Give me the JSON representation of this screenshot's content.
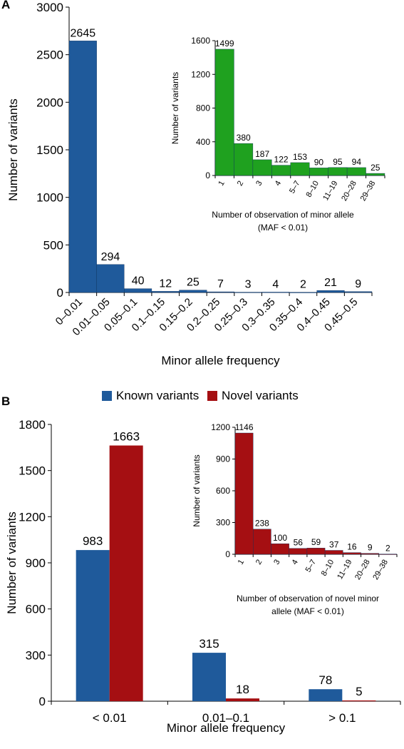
{
  "panel_labels": [
    "A",
    "B"
  ],
  "colors": {
    "blue": "#1f5a9b",
    "red": "#a50f12",
    "green": "#1fa11f"
  },
  "chart_data": [
    {
      "id": "A-main",
      "type": "bar",
      "categories": [
        "0–0.01",
        "0.01–0.05",
        "0.05–0.1",
        "0.1–0.15",
        "0.15–0.2",
        "0.2–0.25",
        "0.25–0.3",
        "0.3–0.35",
        "0.35–0.4",
        "0.4–0.45",
        "0.45–0.5"
      ],
      "values": [
        2645,
        294,
        40,
        12,
        25,
        7,
        3,
        4,
        2,
        21,
        9
      ],
      "xlabel": "Minor allele frequency",
      "ylabel": "Number of variants",
      "ylim": [
        0,
        3000
      ],
      "yticks": [
        0,
        500,
        1000,
        1500,
        2000,
        2500,
        3000
      ],
      "color": "#1f5a9b"
    },
    {
      "id": "A-inset",
      "type": "bar",
      "categories": [
        "1",
        "2",
        "3",
        "4",
        "5–7",
        "8–10",
        "11–19",
        "20–28",
        "29–38"
      ],
      "values": [
        1499,
        380,
        187,
        122,
        153,
        90,
        95,
        94,
        25
      ],
      "xlabel": [
        "Number of observation of minor allele",
        "(MAF < 0.01)"
      ],
      "ylabel": "Number of variants",
      "ylim": [
        0,
        1600
      ],
      "yticks": [
        0,
        400,
        800,
        1200,
        1600
      ],
      "color": "#1fa11f"
    },
    {
      "id": "B-main",
      "type": "bar",
      "categories": [
        "< 0.01",
        "0.01–0.1",
        "> 0.1"
      ],
      "series": [
        {
          "name": "Known variants",
          "values": [
            983,
            315,
            78
          ],
          "color": "#1f5a9b"
        },
        {
          "name": "Novel variants",
          "values": [
            1663,
            18,
            5
          ],
          "color": "#a50f12"
        }
      ],
      "xlabel": "Minor allele frequency",
      "ylabel": "Number of variants",
      "ylim": [
        0,
        1800
      ],
      "yticks": [
        0,
        300,
        600,
        900,
        1200,
        1500,
        1800
      ],
      "legend": "top"
    },
    {
      "id": "B-inset",
      "type": "bar",
      "categories": [
        "1",
        "2",
        "3",
        "4",
        "5–7",
        "8–10",
        "11–19",
        "20–28",
        "29–38"
      ],
      "values": [
        1146,
        238,
        100,
        56,
        59,
        37,
        16,
        9,
        2
      ],
      "xlabel": [
        "Number of observation of novel minor",
        "allele (MAF < 0.01)"
      ],
      "ylabel": "Number of variants",
      "ylim": [
        0,
        1200
      ],
      "yticks": [
        0,
        300,
        600,
        900,
        1200
      ],
      "color": "#a50f12"
    }
  ]
}
